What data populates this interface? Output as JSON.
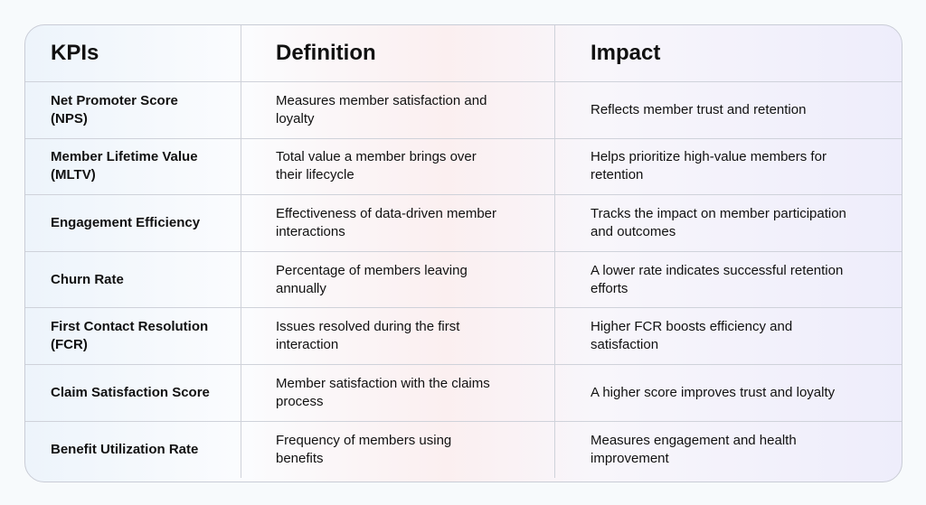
{
  "headers": [
    "KPIs",
    "Definition",
    "Impact"
  ],
  "rows": [
    {
      "kpi": "Net Promoter Score (NPS)",
      "definition": "Measures member satisfaction and loyalty",
      "impact": "Reflects member trust and retention"
    },
    {
      "kpi": "Member Lifetime Value (MLTV)",
      "definition": "Total value a member brings over their lifecycle",
      "impact": "Helps prioritize high-value members for retention"
    },
    {
      "kpi": "Engagement Efficiency",
      "definition": "Effectiveness of data-driven member interactions",
      "impact": "Tracks the impact on member participation and outcomes"
    },
    {
      "kpi": "Churn Rate",
      "definition": "Percentage of members leaving annually",
      "impact": "A lower rate indicates successful retention efforts"
    },
    {
      "kpi": "First Contact Resolution (FCR)",
      "definition": "Issues resolved during the first interaction",
      "impact": "Higher FCR boosts efficiency and satisfaction"
    },
    {
      "kpi": "Claim Satisfaction Score",
      "definition": "Member satisfaction with the claims process",
      "impact": "A higher score improves trust and loyalty"
    },
    {
      "kpi": "Benefit Utilization Rate",
      "definition": "Frequency of members using benefits",
      "impact": "Measures engagement and health improvement"
    }
  ]
}
